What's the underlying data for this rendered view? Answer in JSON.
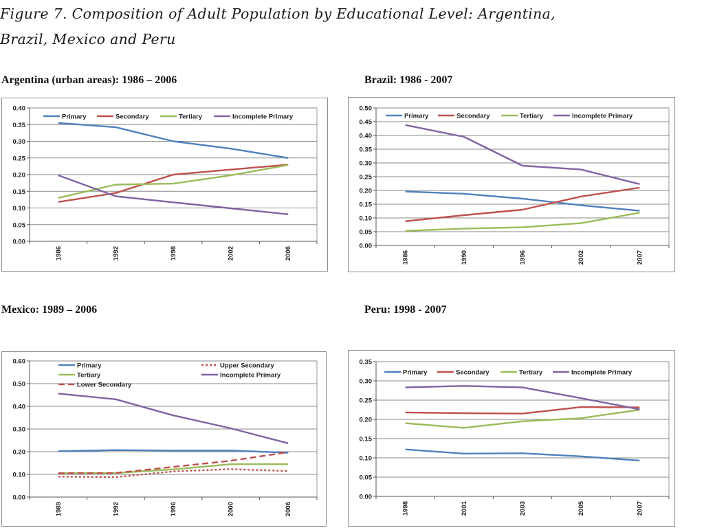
{
  "figure": {
    "title_line1": "Figure 7. Composition of Adult Population by Educational Level: Argentina,",
    "title_line2": "Brazil, Mexico and Peru"
  },
  "colors": {
    "primary": "#4f81bd",
    "secondary": "#c0504d",
    "tertiary": "#9bbb59",
    "incomplete_primary": "#8064a2"
  },
  "chart_data": [
    {
      "type": "line",
      "title": "Argentina (urban areas): 1986 – 2006",
      "categories": [
        "1986",
        "1992",
        "1998",
        "2002",
        "2006"
      ],
      "ylim": [
        0,
        0.4
      ],
      "yticks": [
        "0.00",
        "0.05",
        "0.10",
        "0.15",
        "0.20",
        "0.25",
        "0.30",
        "0.35",
        "0.40"
      ],
      "legend_columns": 4,
      "series": [
        {
          "name": "Primary",
          "color": "#4f81bd",
          "dash": "solid",
          "values": [
            0.355,
            0.342,
            0.3,
            0.278,
            0.25
          ]
        },
        {
          "name": "Secondary",
          "color": "#c0504d",
          "dash": "solid",
          "values": [
            0.118,
            0.145,
            0.2,
            0.215,
            0.23
          ]
        },
        {
          "name": "Tertiary",
          "color": "#9bbb59",
          "dash": "solid",
          "values": [
            0.13,
            0.17,
            0.173,
            0.198,
            0.229
          ]
        },
        {
          "name": "Incomplete Primary",
          "color": "#8064a2",
          "dash": "solid",
          "values": [
            0.198,
            0.135,
            0.117,
            0.099,
            0.081
          ]
        }
      ]
    },
    {
      "type": "line",
      "title": "Brazil: 1986 - 2007",
      "categories": [
        "1986",
        "1990",
        "1996",
        "2002",
        "2007"
      ],
      "ylim": [
        0,
        0.5
      ],
      "yticks": [
        "0.00",
        "0.05",
        "0.10",
        "0.15",
        "0.20",
        "0.25",
        "0.30",
        "0.35",
        "0.40",
        "0.45",
        "0.50"
      ],
      "legend_columns": 4,
      "series": [
        {
          "name": "Primary",
          "color": "#4f81bd",
          "dash": "solid",
          "values": [
            0.196,
            0.188,
            0.17,
            0.146,
            0.126
          ]
        },
        {
          "name": "Secondary",
          "color": "#c0504d",
          "dash": "solid",
          "values": [
            0.088,
            0.11,
            0.13,
            0.178,
            0.21
          ]
        },
        {
          "name": "Tertiary",
          "color": "#9bbb59",
          "dash": "solid",
          "values": [
            0.053,
            0.061,
            0.066,
            0.081,
            0.119
          ]
        },
        {
          "name": "Incomplete Primary",
          "color": "#8064a2",
          "dash": "solid",
          "values": [
            0.438,
            0.395,
            0.29,
            0.276,
            0.223
          ]
        }
      ]
    },
    {
      "type": "line",
      "title": "Mexico: 1989 – 2006",
      "categories": [
        "1989",
        "1992",
        "1996",
        "2000",
        "2006"
      ],
      "ylim": [
        0,
        0.6
      ],
      "yticks": [
        "0.00",
        "0.10",
        "0.20",
        "0.30",
        "0.40",
        "0.50",
        "0.60"
      ],
      "legend_columns": 2,
      "series": [
        {
          "name": "Primary",
          "color": "#4f81bd",
          "dash": "solid",
          "values": [
            0.202,
            0.207,
            0.205,
            0.205,
            0.195
          ]
        },
        {
          "name": "Upper Secondary",
          "color": "#c0504d",
          "dash": "dot",
          "values": [
            0.09,
            0.088,
            0.113,
            0.123,
            0.115
          ]
        },
        {
          "name": "Tertiary",
          "color": "#9bbb59",
          "dash": "solid",
          "values": [
            0.105,
            0.106,
            0.122,
            0.145,
            0.145
          ]
        },
        {
          "name": "Incomplete Primary",
          "color": "#8064a2",
          "dash": "solid",
          "values": [
            0.456,
            0.431,
            0.36,
            0.303,
            0.237
          ]
        },
        {
          "name": "Lower Secondary",
          "color": "#c0504d",
          "dash": "dash",
          "values": [
            0.105,
            0.106,
            0.133,
            0.16,
            0.198
          ]
        }
      ]
    },
    {
      "type": "line",
      "title": "Peru: 1998 - 2007",
      "categories": [
        "1998",
        "2001",
        "2003",
        "2005",
        "2007"
      ],
      "ylim": [
        0,
        0.35
      ],
      "yticks": [
        "0.00",
        "0.05",
        "0.10",
        "0.15",
        "0.20",
        "0.25",
        "0.30",
        "0.35"
      ],
      "legend_columns": 4,
      "series": [
        {
          "name": "Primary",
          "color": "#4f81bd",
          "dash": "solid",
          "values": [
            0.122,
            0.111,
            0.112,
            0.104,
            0.093
          ]
        },
        {
          "name": "Secondary",
          "color": "#c0504d",
          "dash": "solid",
          "values": [
            0.218,
            0.216,
            0.215,
            0.232,
            0.231
          ]
        },
        {
          "name": "Tertiary",
          "color": "#9bbb59",
          "dash": "solid",
          "values": [
            0.19,
            0.178,
            0.195,
            0.203,
            0.225
          ]
        },
        {
          "name": "Incomplete Primary",
          "color": "#8064a2",
          "dash": "solid",
          "values": [
            0.283,
            0.287,
            0.283,
            0.255,
            0.226
          ]
        }
      ]
    }
  ]
}
